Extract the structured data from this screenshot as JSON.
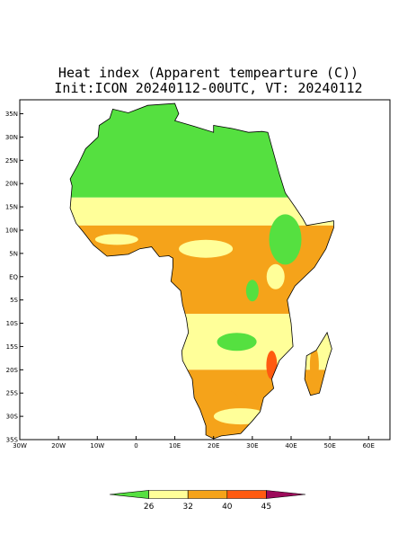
{
  "chart_data": {
    "type": "map",
    "title": "Heat index (Apparent tempearture (C))",
    "subtitle": "Init:ICON 20240112-00UTC, VT: 20240112",
    "xlim": [
      -30,
      65.5
    ],
    "ylim": [
      -35,
      38
    ],
    "xticks": [
      {
        "value": -30,
        "label": "30W"
      },
      {
        "value": -20,
        "label": "20W"
      },
      {
        "value": -10,
        "label": "10W"
      },
      0,
      {
        "value": 10,
        "label": "10E"
      },
      {
        "value": 20,
        "label": "20E"
      },
      {
        "value": 30,
        "label": "30E"
      },
      {
        "value": 40,
        "label": "40E"
      },
      {
        "value": 50,
        "label": "50E"
      },
      {
        "value": 60,
        "label": "60E"
      }
    ],
    "yticks": [
      {
        "value": 35,
        "label": "35N"
      },
      {
        "value": 30,
        "label": "30N"
      },
      {
        "value": 25,
        "label": "25N"
      },
      {
        "value": 20,
        "label": "20N"
      },
      {
        "value": 15,
        "label": "15N"
      },
      {
        "value": 10,
        "label": "10N"
      },
      {
        "value": 5,
        "label": "5N"
      },
      {
        "value": 0,
        "label": "EQ"
      },
      {
        "value": -5,
        "label": "5S"
      },
      {
        "value": -10,
        "label": "10S"
      },
      {
        "value": -15,
        "label": "15S"
      },
      {
        "value": -20,
        "label": "20S"
      },
      {
        "value": -25,
        "label": "25S"
      },
      {
        "value": -30,
        "label": "30S"
      },
      {
        "value": -35,
        "label": "35S"
      }
    ],
    "colorbar": {
      "levels": [
        26,
        32,
        40,
        45
      ],
      "colors": [
        "#55e040",
        "#ffff99",
        "#f5a31a",
        "#ff5a10",
        "#9c0a5a"
      ]
    }
  }
}
